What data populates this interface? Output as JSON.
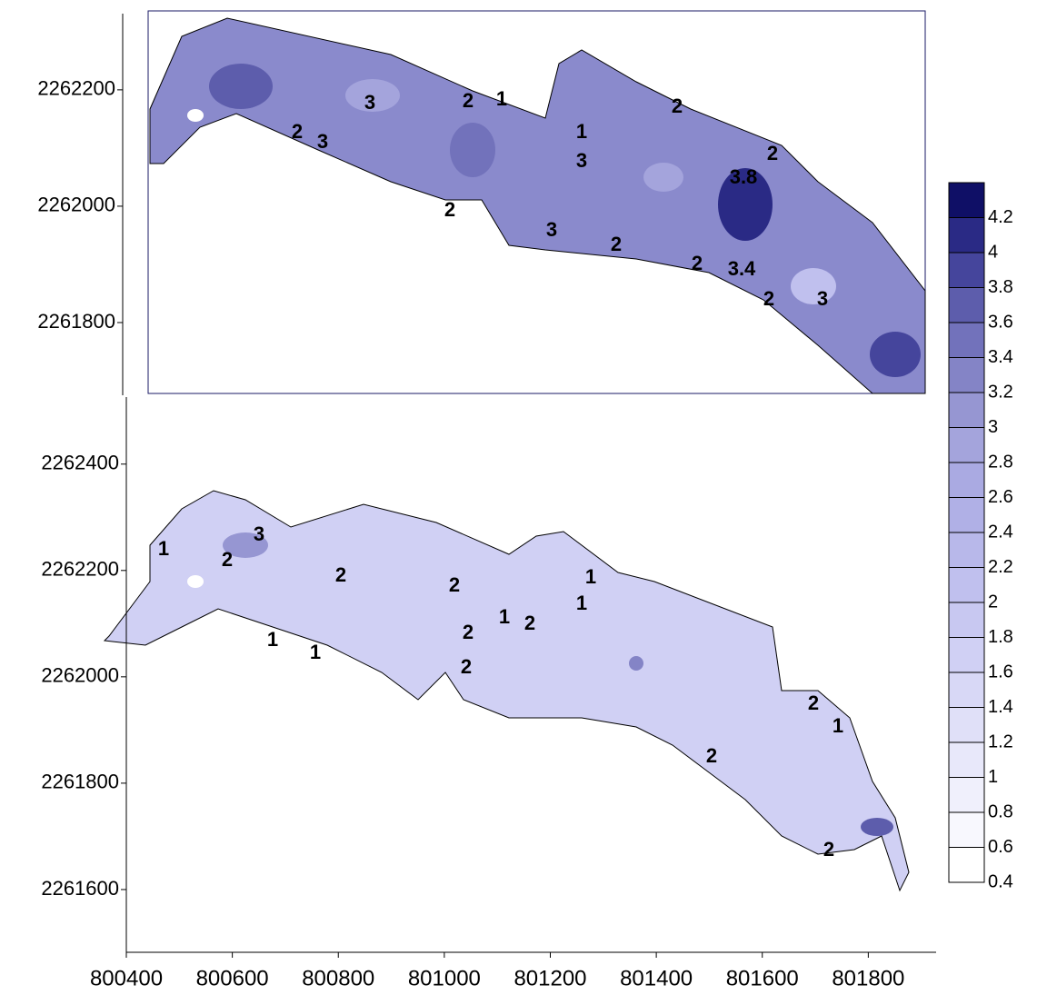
{
  "chart_data": [
    {
      "type": "contour",
      "ylim": [
        2261675,
        2262331
      ],
      "yticks": [
        2261800,
        2262000,
        2262200
      ],
      "annotations": [
        "3",
        "2",
        "1",
        "2",
        "3",
        "1",
        "3",
        "2",
        "3.8",
        "2",
        "3",
        "2",
        "2",
        "3.4",
        "2",
        "3",
        "2"
      ]
    },
    {
      "type": "contour",
      "xlim": [
        800400,
        801928
      ],
      "ylim": [
        2261482,
        2262526
      ],
      "xticks": [
        800400,
        800600,
        800800,
        801000,
        801200,
        801400,
        801600,
        801800
      ],
      "yticks": [
        2261600,
        2261800,
        2262000,
        2262200,
        2262400
      ],
      "annotations": [
        "3",
        "2",
        "1",
        "2",
        "2",
        "1",
        "1",
        "1",
        "2",
        "2",
        "2",
        "1",
        "1",
        "2",
        "1",
        "2",
        "2"
      ]
    },
    {
      "type": "colorbar",
      "ylim": [
        0.4,
        4.4
      ],
      "yticks": [
        0.4,
        0.6,
        0.8,
        1,
        1.2,
        1.4,
        1.6,
        1.8,
        2,
        2.2,
        2.4,
        2.6,
        2.8,
        3,
        3.2,
        3.4,
        3.6,
        3.8,
        4,
        4.2
      ],
      "colors": [
        "#ffffff",
        "#f8f8fe",
        "#f0f0fc",
        "#e8e8fa",
        "#e0e0f8",
        "#d8d8f6",
        "#d0d0f4",
        "#c8c8f1",
        "#c0c0ee",
        "#b8b8ea",
        "#b0b0e6",
        "#aaaae2",
        "#a4a4dc",
        "#9696d2",
        "#8484c6",
        "#7272bb",
        "#5d5dac",
        "#45459c",
        "#2a2a85",
        "#0f0f66"
      ]
    }
  ]
}
